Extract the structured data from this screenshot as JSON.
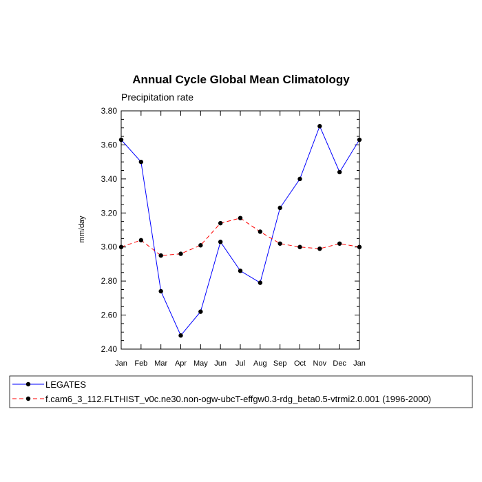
{
  "chart_data": {
    "type": "line",
    "title": "Annual Cycle Global Mean Climatology",
    "subtitle": "Precipitation rate",
    "ylabel": "mm/day",
    "xlabel": "",
    "categories": [
      "Jan",
      "Feb",
      "Mar",
      "Apr",
      "May",
      "Jun",
      "Jul",
      "Aug",
      "Sep",
      "Oct",
      "Nov",
      "Dec",
      "Jan"
    ],
    "ylim": [
      2.4,
      3.8
    ],
    "yticks": [
      "2.40",
      "2.60",
      "2.80",
      "3.00",
      "3.20",
      "3.40",
      "3.60",
      "3.80"
    ],
    "yticks_values": [
      2.4,
      2.6,
      2.8,
      3.0,
      3.2,
      3.4,
      3.6,
      3.8
    ],
    "series": [
      {
        "name": "LEGATES",
        "color": "#0000ff",
        "dash": "solid",
        "values": [
          3.63,
          3.5,
          2.74,
          2.48,
          2.62,
          3.03,
          2.86,
          2.79,
          3.23,
          3.4,
          3.71,
          3.44,
          3.63
        ]
      },
      {
        "name": "f.cam6_3_112.FLTHIST_v0c.ne30.non-ogw-ubcT-effgw0.3-rdg_beta0.5-vtrmi2.0.001 (1996-2000)",
        "color": "#ff0000",
        "dash": "dashed",
        "values": [
          3.0,
          3.04,
          2.95,
          2.96,
          3.01,
          3.14,
          3.17,
          3.09,
          3.02,
          3.0,
          2.99,
          3.02,
          3.0
        ]
      }
    ],
    "legend_position": "bottom"
  }
}
